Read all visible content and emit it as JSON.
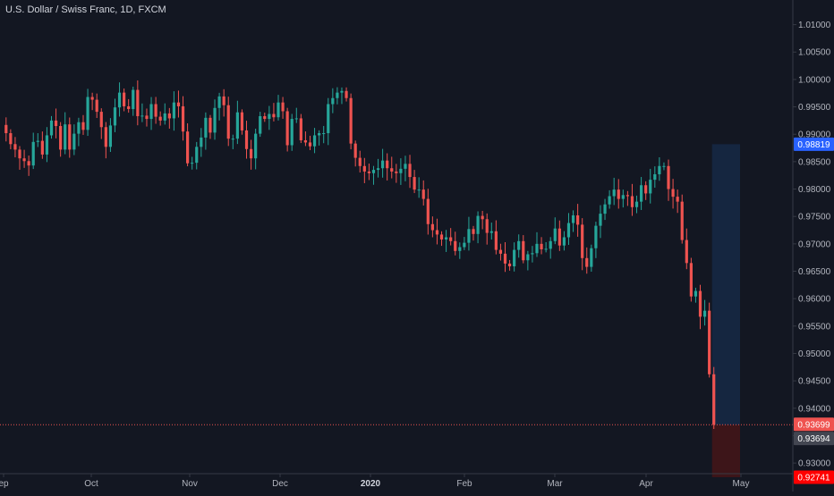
{
  "header": {
    "title": "U.S. Dollar / Swiss Franc, 1D, FXCM"
  },
  "colors": {
    "background": "#131722",
    "up": "#26a69a",
    "down": "#ef5350",
    "axis_text": "#b2b5be",
    "axis_line": "#363a45",
    "target_zone": "#152640",
    "stop_zone": "#3d1519",
    "price_line": "#ef5350",
    "target_label_bg": "#2962ff",
    "stop_label_bg": "#ff0000",
    "current_label_bg": "#ef5350",
    "entry_label_bg": "#434651"
  },
  "chart_data": {
    "type": "candlestick",
    "title": "U.S. Dollar / Swiss Franc, 1D, FXCM",
    "x_tick_labels": [
      "ep",
      "Oct",
      "Nov",
      "Dec",
      "2020",
      "Feb",
      "Mar",
      "Apr",
      "May"
    ],
    "y_ticks": [
      0.93,
      0.935,
      0.94,
      0.945,
      0.95,
      0.955,
      0.96,
      0.965,
      0.97,
      0.975,
      0.98,
      0.985,
      0.99,
      0.995,
      1.0,
      1.005,
      1.01
    ],
    "y_tick_labels": [
      "0.93000",
      "0.93500",
      "0.94000",
      "0.94500",
      "0.95000",
      "0.95500",
      "0.96000",
      "0.96500",
      "0.97000",
      "0.97500",
      "0.98000",
      "0.98500",
      "0.99000",
      "0.99500",
      "1.00000",
      "1.00500",
      "1.01000"
    ],
    "ylim": [
      0.9248,
      1.0145
    ],
    "grid": false,
    "closes": [
      0.9902,
      0.9882,
      0.9872,
      0.9856,
      0.9851,
      0.9843,
      0.9886,
      0.9888,
      0.9863,
      0.9898,
      0.9925,
      0.9915,
      0.9872,
      0.9918,
      0.9872,
      0.9901,
      0.9922,
      0.9908,
      0.9968,
      0.9963,
      0.9941,
      0.9913,
      0.9877,
      0.9916,
      0.9949,
      0.9976,
      0.9951,
      0.9946,
      0.9981,
      0.9933,
      0.9934,
      0.9928,
      0.9955,
      0.9932,
      0.9925,
      0.9938,
      0.9929,
      0.9958,
      0.9951,
      0.9905,
      0.9847,
      0.9848,
      0.9877,
      0.9894,
      0.993,
      0.9903,
      0.9948,
      0.9969,
      0.9953,
      0.9892,
      0.9892,
      0.994,
      0.9907,
      0.9873,
      0.9856,
      0.9901,
      0.9933,
      0.9928,
      0.9937,
      0.9931,
      0.9958,
      0.9942,
      0.988,
      0.9928,
      0.9929,
      0.9889,
      0.9885,
      0.9878,
      0.9898,
      0.9902,
      0.9902,
      0.9955,
      0.9966,
      0.9976,
      0.9979,
      0.9966,
      0.9883,
      0.9857,
      0.9842,
      0.9832,
      0.9829,
      0.9835,
      0.9838,
      0.9852,
      0.9838,
      0.9832,
      0.9829,
      0.9837,
      0.9846,
      0.9822,
      0.9799,
      0.9799,
      0.9782,
      0.9736,
      0.9725,
      0.9717,
      0.9708,
      0.9712,
      0.9705,
      0.9687,
      0.9694,
      0.9702,
      0.9727,
      0.9718,
      0.9751,
      0.9745,
      0.972,
      0.9723,
      0.9689,
      0.9682,
      0.9664,
      0.9659,
      0.9689,
      0.9705,
      0.967,
      0.9681,
      0.9683,
      0.97,
      0.969,
      0.9691,
      0.9705,
      0.9728,
      0.9697,
      0.9712,
      0.9738,
      0.9752,
      0.9735,
      0.9674,
      0.9658,
      0.9692,
      0.9733,
      0.9755,
      0.9772,
      0.9787,
      0.9799,
      0.9782,
      0.9789,
      0.9787,
      0.9767,
      0.9777,
      0.9807,
      0.9792,
      0.9817,
      0.9827,
      0.9842,
      0.9842,
      0.98,
      0.9786,
      0.9777,
      0.9707,
      0.9665,
      0.9604,
      0.9614,
      0.9567,
      0.9578,
      0.9462,
      0.937
    ],
    "series": [
      {
        "name": "USDCHF",
        "type": "candlestick"
      }
    ],
    "position": {
      "type": "long",
      "target_price": 0.98819,
      "entry_price": 0.93694,
      "stop_price": 0.92741,
      "current_price": 0.93699
    },
    "price_labels": {
      "target": "0.98819",
      "current": "0.93699",
      "entry": "0.93694",
      "stop": "0.92741"
    }
  }
}
